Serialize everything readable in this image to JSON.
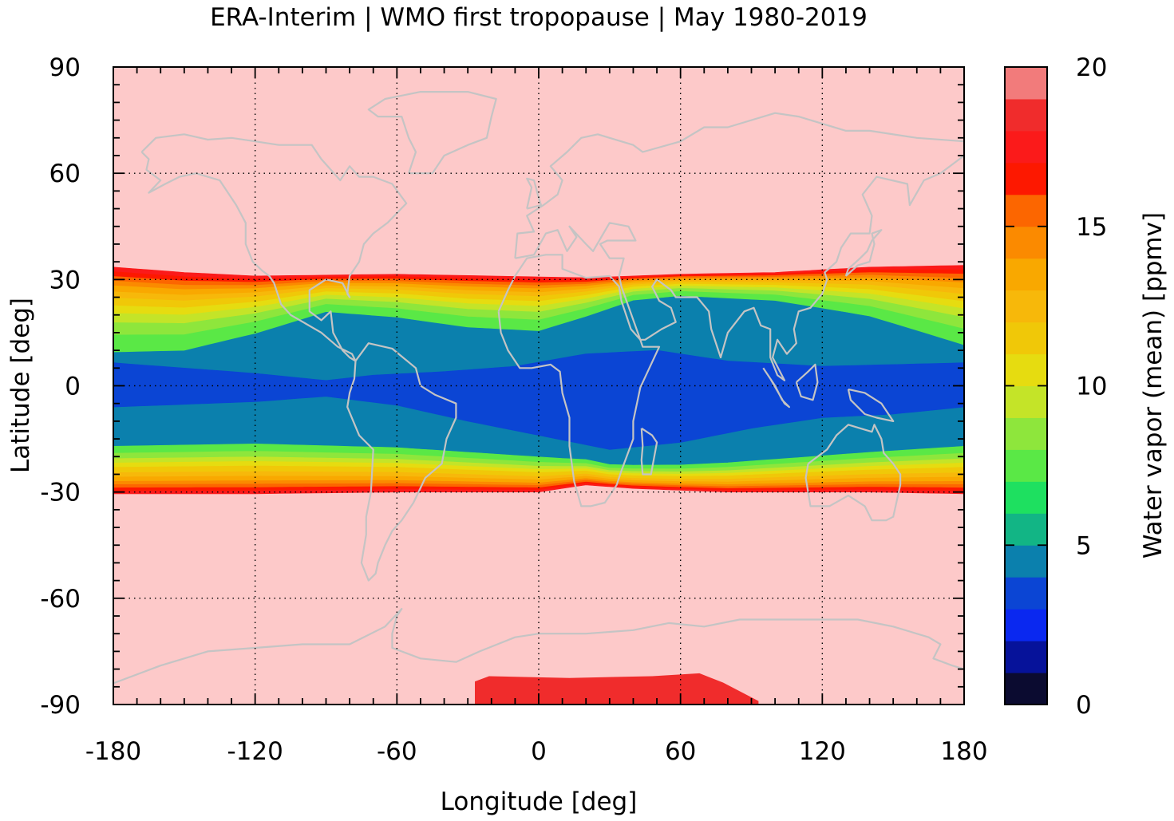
{
  "chart_data": {
    "type": "heatmap",
    "title": "ERA-Interim | WMO first tropopause | May 1980-2019",
    "xlabel": "Longitude [deg]",
    "ylabel": "Latitude [deg]",
    "colorbar_label": "Water vapor (mean) [ppmv]",
    "xlim": [
      -180,
      180
    ],
    "ylim": [
      -90,
      90
    ],
    "x_ticks": [
      -180,
      -120,
      -60,
      0,
      60,
      120,
      180
    ],
    "y_ticks": [
      90,
      60,
      30,
      0,
      -30,
      -60,
      -90
    ],
    "x_tick_labels": [
      "-180",
      "-120",
      "-60",
      "0",
      "60",
      "120",
      "180"
    ],
    "y_tick_labels": [
      "90",
      "60",
      "30",
      "0",
      "-30",
      "-60",
      "-90"
    ],
    "colorbar_range": [
      0,
      20
    ],
    "colorbar_ticks": [
      0,
      5,
      10,
      15,
      20
    ],
    "colorbar_tick_labels": [
      "0",
      "5",
      "10",
      "15",
      "20"
    ],
    "colorbar_step": 1,
    "grid": true,
    "colorbar_colors": [
      "#0b0b30",
      "#06129a",
      "#0a28f0",
      "#0b45d4",
      "#0b80ad",
      "#12b585",
      "#1ee060",
      "#5ae846",
      "#8ee63c",
      "#c4e428",
      "#e6dc10",
      "#f0c808",
      "#f7b80a",
      "#f9a800",
      "#fb8a00",
      "#fc6600",
      "#fd1800",
      "#fb1a1a",
      "#f02c2c",
      "#f27b7b",
      "#fdc9c9"
    ],
    "bands_deg": {
      "north_subtropical_edge": 31,
      "south_subtropical_edge": -29,
      "deep_tropics_north": 6,
      "deep_tropics_south": -6
    },
    "antarctic_anomaly": {
      "lon_range": [
        -27,
        93
      ],
      "lat_range": [
        -90,
        -82
      ],
      "value": 18.5
    },
    "summary": {
      "extratropics_value": 20,
      "subtropical_jet_value": 17,
      "tropical_belt_value": 4.5,
      "deep_tropics_value": 3.5
    }
  }
}
